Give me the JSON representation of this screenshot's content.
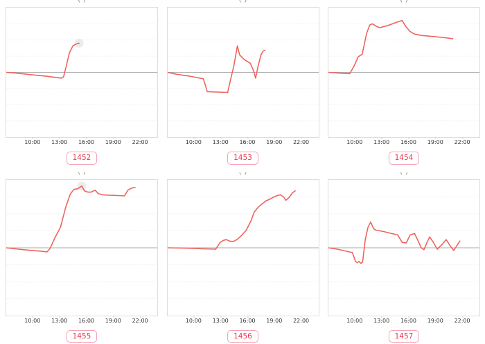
{
  "colors": {
    "line": "#f0625c",
    "zero_line": "#ababab",
    "grid": "#ececec",
    "plot_border": "#dcdcdc",
    "tick_text": "#333333",
    "badge_text": "#e8384f",
    "badge_border": "#f5a3b5",
    "halo_fill": "#c9c9c9"
  },
  "x_axis": {
    "tick_labels": [
      "10:00",
      "13:00",
      "16:00",
      "19:00",
      "22:00"
    ],
    "tick_hours": [
      10,
      13,
      16,
      19,
      22
    ],
    "range_hours": [
      7,
      24
    ]
  },
  "chart_data": [
    {
      "type": "line",
      "label": "1452",
      "clipped_title": "( )",
      "x_ticks": [
        "10:00",
        "13:00",
        "16:00",
        "19:00",
        "22:00"
      ],
      "x_range": [
        7,
        24
      ],
      "ylim": [
        -1,
        1
      ],
      "zero_line": true,
      "grid": true,
      "points": [
        [
          7,
          0
        ],
        [
          8,
          -0.01
        ],
        [
          10,
          -0.04
        ],
        [
          11.5,
          -0.06
        ],
        [
          13.2,
          -0.09
        ],
        [
          13.45,
          -0.07
        ],
        [
          13.8,
          0.12
        ],
        [
          14.1,
          0.3
        ],
        [
          14.5,
          0.41
        ],
        [
          14.9,
          0.44
        ],
        [
          15.2,
          0.45
        ]
      ],
      "halo_marker": [
        15.2,
        0.45
      ]
    },
    {
      "type": "line",
      "label": "1453",
      "clipped_title": "( )",
      "x_ticks": [
        "10:00",
        "13:00",
        "16:00",
        "19:00",
        "22:00"
      ],
      "x_range": [
        7,
        24
      ],
      "ylim": [
        -1,
        1
      ],
      "zero_line": true,
      "grid": true,
      "points": [
        [
          7,
          0
        ],
        [
          8,
          -0.03
        ],
        [
          9.5,
          -0.06
        ],
        [
          11,
          -0.1
        ],
        [
          11.2,
          -0.18
        ],
        [
          11.45,
          -0.3
        ],
        [
          12.5,
          -0.305
        ],
        [
          13.75,
          -0.31
        ],
        [
          14.1,
          -0.1
        ],
        [
          14.45,
          0.1
        ],
        [
          14.85,
          0.41
        ],
        [
          15.1,
          0.27
        ],
        [
          15.6,
          0.2
        ],
        [
          16.3,
          0.14
        ],
        [
          16.65,
          0.03
        ],
        [
          16.9,
          -0.09
        ],
        [
          17.15,
          0.08
        ],
        [
          17.5,
          0.27
        ],
        [
          17.75,
          0.33
        ],
        [
          17.95,
          0.34
        ]
      ],
      "halo_marker": null
    },
    {
      "type": "line",
      "label": "1454",
      "clipped_title": "( )",
      "x_ticks": [
        "10:00",
        "13:00",
        "16:00",
        "19:00",
        "22:00"
      ],
      "x_range": [
        7,
        24
      ],
      "ylim": [
        -1,
        1
      ],
      "zero_line": true,
      "grid": true,
      "points": [
        [
          7,
          0
        ],
        [
          8,
          -0.01
        ],
        [
          9.4,
          -0.02
        ],
        [
          9.9,
          0.1
        ],
        [
          10.35,
          0.24
        ],
        [
          10.8,
          0.28
        ],
        [
          11.3,
          0.6
        ],
        [
          11.65,
          0.73
        ],
        [
          11.95,
          0.75
        ],
        [
          12.4,
          0.71
        ],
        [
          12.8,
          0.69
        ],
        [
          13.6,
          0.72
        ],
        [
          14.6,
          0.77
        ],
        [
          15.3,
          0.8
        ],
        [
          15.7,
          0.71
        ],
        [
          16.2,
          0.63
        ],
        [
          16.7,
          0.59
        ],
        [
          17.5,
          0.57
        ],
        [
          18.6,
          0.555
        ],
        [
          19.8,
          0.54
        ],
        [
          21.0,
          0.52
        ]
      ],
      "halo_marker": null
    },
    {
      "type": "line",
      "label": "1455",
      "clipped_title": "( )",
      "x_ticks": [
        "10:00",
        "13:00",
        "16:00",
        "19:00",
        "22:00"
      ],
      "x_range": [
        7,
        24
      ],
      "ylim": [
        -1,
        1
      ],
      "zero_line": true,
      "grid": true,
      "points": [
        [
          7,
          0
        ],
        [
          8,
          -0.015
        ],
        [
          9.5,
          -0.035
        ],
        [
          10.9,
          -0.05
        ],
        [
          11.6,
          -0.06
        ],
        [
          11.95,
          -0.005
        ],
        [
          12.45,
          0.14
        ],
        [
          12.85,
          0.24
        ],
        [
          13.1,
          0.3
        ],
        [
          13.7,
          0.6
        ],
        [
          14.2,
          0.79
        ],
        [
          14.6,
          0.86
        ],
        [
          15.05,
          0.87
        ],
        [
          15.5,
          0.91
        ],
        [
          15.8,
          0.84
        ],
        [
          16.2,
          0.82
        ],
        [
          16.55,
          0.82
        ],
        [
          17.0,
          0.85
        ],
        [
          17.35,
          0.8
        ],
        [
          17.9,
          0.78
        ],
        [
          18.5,
          0.775
        ],
        [
          19.6,
          0.77
        ],
        [
          20.3,
          0.765
        ],
        [
          20.7,
          0.85
        ],
        [
          21.1,
          0.88
        ],
        [
          21.5,
          0.89
        ]
      ],
      "halo_marker": [
        15.5,
        0.91
      ]
    },
    {
      "type": "line",
      "label": "1456",
      "clipped_title": "( )",
      "x_ticks": [
        "10:00",
        "13:00",
        "16:00",
        "19:00",
        "22:00"
      ],
      "x_range": [
        7,
        24
      ],
      "ylim": [
        -1,
        1
      ],
      "zero_line": true,
      "grid": true,
      "points": [
        [
          7,
          0
        ],
        [
          9,
          -0.005
        ],
        [
          11,
          -0.015
        ],
        [
          12.4,
          -0.02
        ],
        [
          12.9,
          0.08
        ],
        [
          13.3,
          0.11
        ],
        [
          13.6,
          0.12
        ],
        [
          13.95,
          0.1
        ],
        [
          14.35,
          0.09
        ],
        [
          14.8,
          0.12
        ],
        [
          15.3,
          0.18
        ],
        [
          15.85,
          0.26
        ],
        [
          16.35,
          0.39
        ],
        [
          16.75,
          0.53
        ],
        [
          17.2,
          0.6
        ],
        [
          17.55,
          0.64
        ],
        [
          18.05,
          0.69
        ],
        [
          18.55,
          0.72
        ],
        [
          19.05,
          0.755
        ],
        [
          19.45,
          0.775
        ],
        [
          19.7,
          0.78
        ],
        [
          20.05,
          0.75
        ],
        [
          20.3,
          0.7
        ],
        [
          20.65,
          0.74
        ],
        [
          21.05,
          0.81
        ],
        [
          21.35,
          0.84
        ]
      ],
      "halo_marker": null
    },
    {
      "type": "line",
      "label": "1457",
      "clipped_title": "( )",
      "x_ticks": [
        "10:00",
        "13:00",
        "16:00",
        "19:00",
        "22:00"
      ],
      "x_range": [
        7,
        24
      ],
      "ylim": [
        -1,
        1
      ],
      "zero_line": true,
      "grid": true,
      "points": [
        [
          7,
          0
        ],
        [
          8,
          -0.02
        ],
        [
          9.0,
          -0.05
        ],
        [
          9.7,
          -0.07
        ],
        [
          10.05,
          -0.2
        ],
        [
          10.25,
          -0.22
        ],
        [
          10.45,
          -0.2
        ],
        [
          10.65,
          -0.23
        ],
        [
          10.85,
          -0.21
        ],
        [
          11.15,
          0.12
        ],
        [
          11.45,
          0.3
        ],
        [
          11.75,
          0.38
        ],
        [
          12.1,
          0.28
        ],
        [
          12.35,
          0.26
        ],
        [
          13.2,
          0.24
        ],
        [
          14.1,
          0.21
        ],
        [
          14.8,
          0.19
        ],
        [
          15.3,
          0.08
        ],
        [
          15.75,
          0.07
        ],
        [
          16.2,
          0.19
        ],
        [
          16.7,
          0.21
        ],
        [
          17.1,
          0.1
        ],
        [
          17.45,
          0.0
        ],
        [
          17.75,
          -0.03
        ],
        [
          18.1,
          0.08
        ],
        [
          18.4,
          0.16
        ],
        [
          18.85,
          0.07
        ],
        [
          19.25,
          -0.02
        ],
        [
          19.8,
          0.05
        ],
        [
          20.25,
          0.12
        ],
        [
          20.7,
          0.03
        ],
        [
          21.1,
          -0.04
        ],
        [
          21.45,
          0.03
        ],
        [
          21.8,
          0.1
        ]
      ],
      "halo_marker": null
    }
  ]
}
